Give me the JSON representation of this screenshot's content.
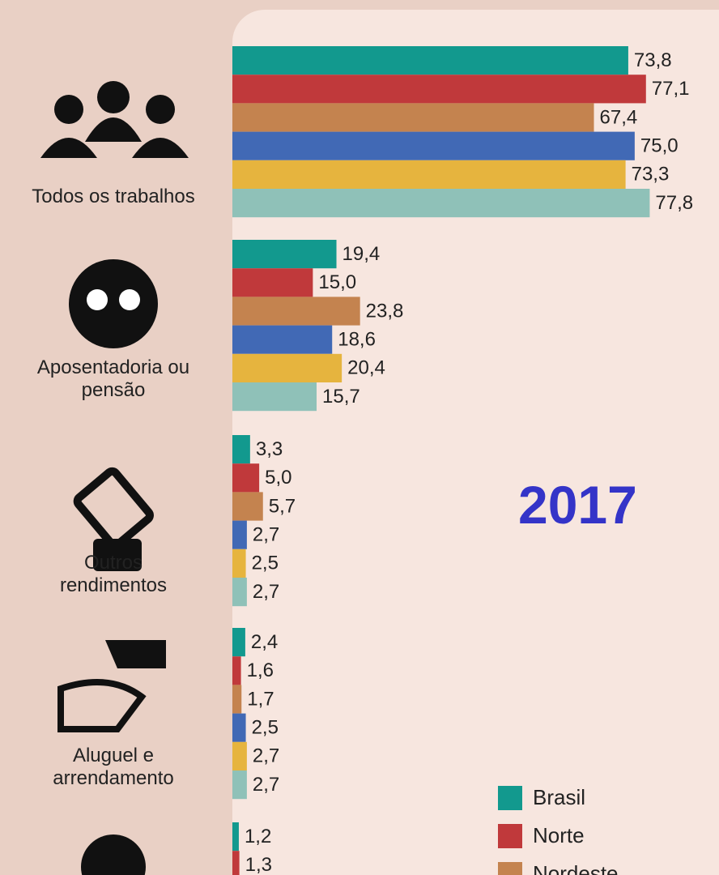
{
  "chart_data": {
    "type": "bar",
    "orientation": "horizontal",
    "annotation": "2017",
    "categories": [
      "Todos os trabalhos",
      "Aposentadoria ou pensão",
      "Outros rendimentos",
      "Aluguel e arrendamento",
      null
    ],
    "xlim": [
      0,
      80
    ],
    "legend": "bottom-right",
    "series": [
      {
        "name": "Brasil",
        "color": "#12998e",
        "values": [
          73.8,
          19.4,
          3.3,
          2.4,
          1.2
        ],
        "value_labels": [
          "73,8",
          "19,4",
          "3,3",
          "2,4",
          "1,2"
        ]
      },
      {
        "name": "Norte",
        "color": "#c0393b",
        "values": [
          77.1,
          15.0,
          5.0,
          1.6,
          1.3
        ],
        "value_labels": [
          "77,1",
          "15,0",
          "5,0",
          "1,6",
          "1,3"
        ]
      },
      {
        "name": "Nordeste",
        "color": "#c4834f",
        "values": [
          67.4,
          23.8,
          5.7,
          1.7,
          null
        ],
        "value_labels": [
          "67,4",
          "23,8",
          "5,7",
          "1,7",
          null
        ]
      },
      {
        "color": "#4169b5",
        "values": [
          75.0,
          18.6,
          2.7,
          2.5,
          null
        ],
        "value_labels": [
          "75,0",
          "18,6",
          "2,7",
          "2,5",
          null
        ]
      },
      {
        "color": "#e6b43e",
        "values": [
          73.3,
          20.4,
          2.5,
          2.7,
          null
        ],
        "value_labels": [
          "73,3",
          "20,4",
          "2,5",
          "2,7",
          null
        ]
      },
      {
        "color": "#8fc1b8",
        "values": [
          77.8,
          15.7,
          2.7,
          2.7,
          null
        ],
        "value_labels": [
          "77,8",
          "15,7",
          "2,7",
          "2,7",
          null
        ]
      }
    ]
  }
}
